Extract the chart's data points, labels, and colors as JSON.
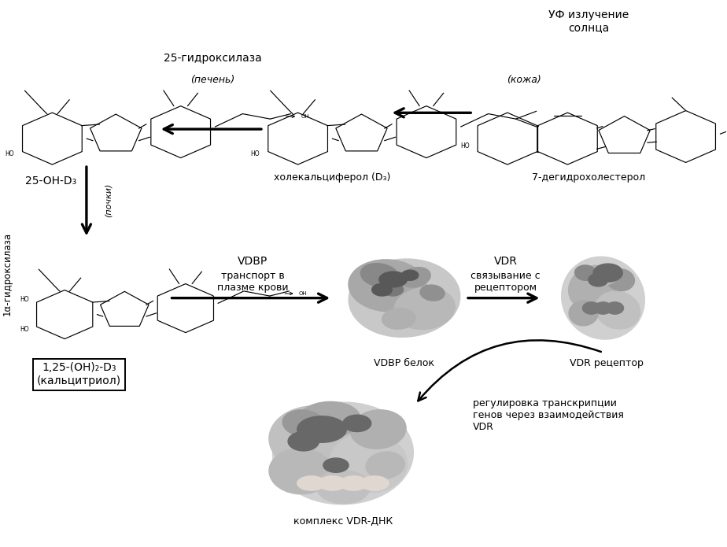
{
  "bg_color": "#ffffff",
  "text_color": "#000000",
  "labels": {
    "uv": "УФ излучение\nсолнца",
    "skin": "(кожа)",
    "liver": "(печень)",
    "kidneys": "(почки)",
    "hydroxylase25": "25-гидроксилаза",
    "hydroxylase1a": "1α-гидроксилаза",
    "oh25": "25-OH-D₃",
    "cholecalciferol": "холекальциферол (D₃)",
    "dehydrocholesterol": "7-дегидрохолестерол",
    "calcitriol": "1,25-(OH)₂-D₃\n(кальцитриол)",
    "vdbp": "VDBP",
    "vdbp_transport": "транспорт в\nплазме крови",
    "vdbp_protein": "VDBP белок",
    "vdr": "VDR",
    "vdr_binding": "связывание с\nрецептором",
    "vdr_receptor": "VDR рецептор",
    "regulation": "регулировка транскрипции\nгенов через взаимодействия\nVDR",
    "vdr_dna": "комплекс VDR-ДНК"
  },
  "fontsize_main": 11,
  "fontsize_small": 9,
  "fontsize_label": 10,
  "fig_w": 9.24,
  "fig_h": 6.95,
  "dpi": 100
}
